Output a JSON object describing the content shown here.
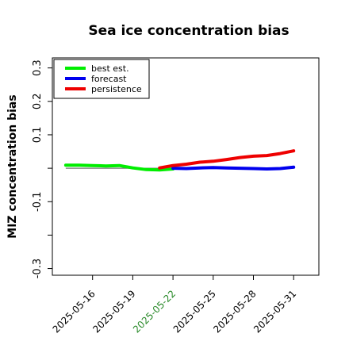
{
  "chart_data": {
    "type": "line",
    "title": "Sea ice concentration bias",
    "ylabel": "MIZ concentration bias",
    "xlabel": "",
    "ylim": [
      -0.32,
      0.33
    ],
    "yticks": [
      -0.3,
      -0.2,
      -0.1,
      0.0,
      0.1,
      0.2,
      0.3
    ],
    "ytick_labels": [
      "-0.3",
      "",
      "-0.1",
      "",
      "0.1",
      "0.2",
      "0.3"
    ],
    "x_start": "2025-05-14",
    "xlim": [
      "2025-05-13",
      "2025-06-01"
    ],
    "xticks": [
      "2025-05-16",
      "2025-05-19",
      "2025-05-22",
      "2025-05-25",
      "2025-05-28",
      "2025-05-31"
    ],
    "highlight_tick": "2025-05-22",
    "highlight_color": "#2a8a2a",
    "zero_line": true,
    "legend_position": "top-left",
    "grid": false,
    "series": [
      {
        "name": "best est.",
        "color": "#00ee00",
        "x": [
          "2025-05-14",
          "2025-05-15",
          "2025-05-16",
          "2025-05-17",
          "2025-05-18",
          "2025-05-19",
          "2025-05-20",
          "2025-05-21",
          "2025-05-22"
        ],
        "values": [
          0.009,
          0.009,
          0.008,
          0.007,
          0.008,
          0.001,
          -0.004,
          -0.005,
          -0.002
        ]
      },
      {
        "name": "forecast",
        "color": "#0000ee",
        "x": [
          "2025-05-22",
          "2025-05-23",
          "2025-05-24",
          "2025-05-25",
          "2025-05-26",
          "2025-05-27",
          "2025-05-28",
          "2025-05-29",
          "2025-05-30",
          "2025-05-31"
        ],
        "values": [
          0.0,
          -0.001,
          0.001,
          0.002,
          0.001,
          0.0,
          -0.001,
          -0.002,
          -0.001,
          0.003
        ]
      },
      {
        "name": "persistence",
        "color": "#ee0000",
        "x": [
          "2025-05-21",
          "2025-05-22",
          "2025-05-23",
          "2025-05-24",
          "2025-05-25",
          "2025-05-26",
          "2025-05-27",
          "2025-05-28",
          "2025-05-29",
          "2025-05-30",
          "2025-05-31"
        ],
        "values": [
          0.001,
          0.008,
          0.012,
          0.018,
          0.021,
          0.026,
          0.032,
          0.036,
          0.038,
          0.044,
          0.052
        ]
      }
    ]
  }
}
